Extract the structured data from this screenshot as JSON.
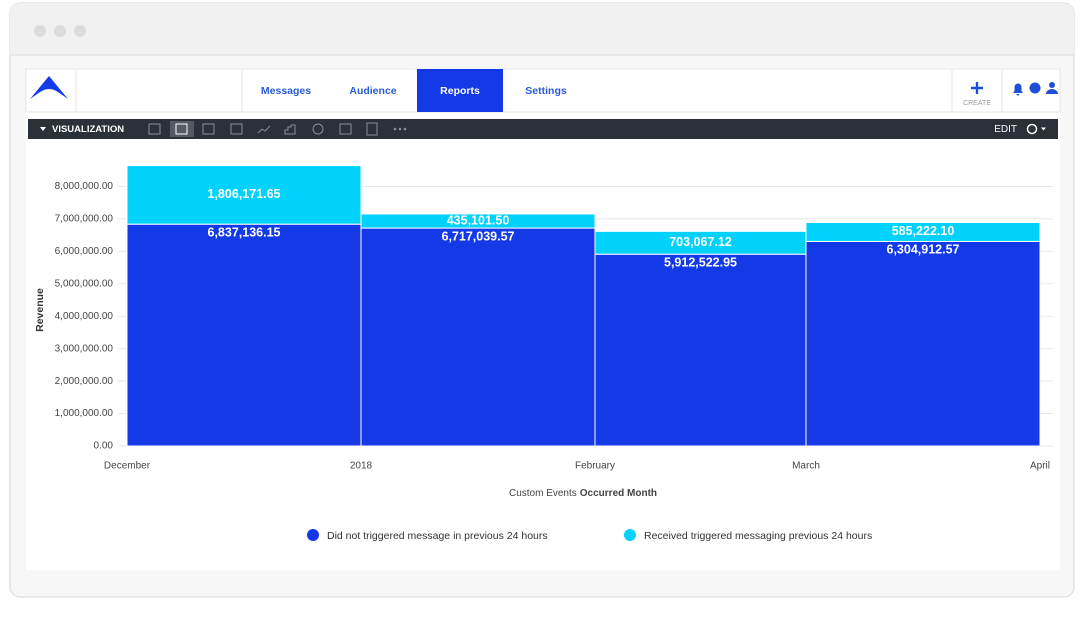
{
  "nav": {
    "tabs": [
      "Messages",
      "Audience",
      "Reports",
      "Settings"
    ],
    "active_tab": 2,
    "create": "CREATE"
  },
  "toolbar": {
    "title": "VISUALIZATION",
    "edit": "EDIT"
  },
  "chart_data": {
    "type": "stacked-bar",
    "ylabel": "Revenue",
    "xlabel": [
      "Custom Events",
      "Occurred Month"
    ],
    "xtick_labels": [
      "December",
      "2018",
      "February",
      "March",
      "April"
    ],
    "ylim": [
      0,
      9000000
    ],
    "yticks": [
      {
        "value": 0,
        "label": "0.00"
      },
      {
        "value": 1000000,
        "label": "1,000,000.00"
      },
      {
        "value": 2000000,
        "label": "2,000,000.00"
      },
      {
        "value": 3000000,
        "label": "3,000,000.00"
      },
      {
        "value": 4000000,
        "label": "4,000,000.00"
      },
      {
        "value": 5000000,
        "label": "5,000,000.00"
      },
      {
        "value": 6000000,
        "label": "6,000,000.00"
      },
      {
        "value": 7000000,
        "label": "7,000,000.00"
      },
      {
        "value": 8000000,
        "label": "8,000,000.00"
      }
    ],
    "grid": true,
    "series": [
      {
        "name": "Did not triggered message in previous 24 hours",
        "color": "#1439e6",
        "values": [
          6837136.15,
          6717039.57,
          5912522.95,
          6304912.57
        ],
        "value_labels": [
          "6,837,136.15",
          "6,717,039.57",
          "5,912,522.95",
          "6,304,912.57"
        ]
      },
      {
        "name": "Received triggered messaging previous 24 hours",
        "color": "#00d2fb",
        "values": [
          1806171.65,
          435101.5,
          703067.12,
          585222.1
        ],
        "value_labels": [
          "1,806,171.65",
          "435,101.50",
          "703,067.12",
          "585,222.10"
        ]
      }
    ]
  }
}
